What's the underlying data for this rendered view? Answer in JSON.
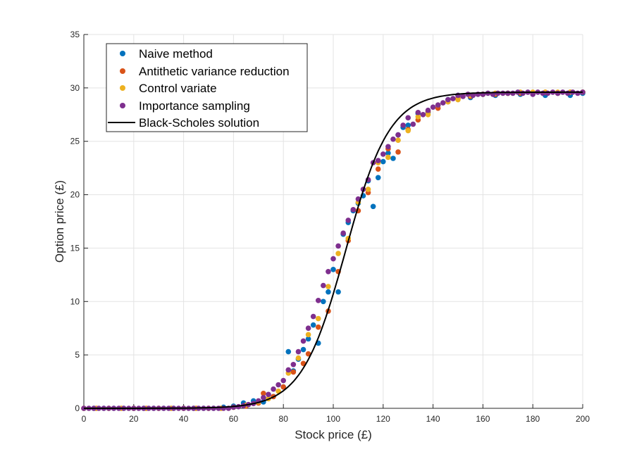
{
  "chart_data": {
    "type": "scatter",
    "title": "",
    "xlabel": "Stock price (£)",
    "ylabel": "Option price (£)",
    "xlim": [
      0,
      200
    ],
    "ylim": [
      0,
      35
    ],
    "xticks": [
      0,
      20,
      40,
      60,
      80,
      100,
      120,
      140,
      160,
      180,
      200
    ],
    "yticks": [
      0,
      5,
      10,
      15,
      20,
      25,
      30,
      35
    ],
    "grid": true,
    "legend_position": "top-left",
    "model": {
      "name": "Black-Scholes solution",
      "description_values": {
        "strike_center": 105,
        "sigma": 15,
        "cap": 29.6
      }
    },
    "series": [
      {
        "name": "Naive method",
        "kind": "scatter",
        "color": "#0072BD",
        "x": [
          0,
          4,
          8,
          12,
          16,
          20,
          24,
          28,
          32,
          36,
          40,
          44,
          48,
          52,
          56,
          60,
          64,
          68,
          72,
          76,
          80,
          82,
          84,
          86,
          88,
          90,
          92,
          94,
          96,
          98,
          100,
          102,
          104,
          106,
          108,
          110,
          112,
          114,
          116,
          118,
          120,
          122,
          124,
          126,
          128,
          130,
          134,
          138,
          142,
          146,
          150,
          155,
          160,
          165,
          170,
          175,
          180,
          185,
          190,
          195,
          200
        ],
        "y": [
          0,
          0,
          0,
          0,
          0,
          0,
          0,
          0,
          0,
          0,
          0,
          0,
          0,
          0,
          0.1,
          0.2,
          0.5,
          0.7,
          0.6,
          1.1,
          2.0,
          5.3,
          3.5,
          4.6,
          5.5,
          6.5,
          7.8,
          6.1,
          10.0,
          10.9,
          13.0,
          10.9,
          16.3,
          17.4,
          18.5,
          19.2,
          19.9,
          21.3,
          18.9,
          21.6,
          23.1,
          23.9,
          23.4,
          25.6,
          26.3,
          26.5,
          27.6,
          27.7,
          28.4,
          28.9,
          29.3,
          29.1,
          29.4,
          29.3,
          29.5,
          29.4,
          29.5,
          29.3,
          29.5,
          29.3,
          29.5
        ]
      },
      {
        "name": "Antithetic variance reduction",
        "kind": "scatter",
        "color": "#D95319",
        "x": [
          0,
          5,
          10,
          15,
          20,
          25,
          30,
          35,
          40,
          45,
          50,
          55,
          60,
          65,
          70,
          72,
          76,
          80,
          84,
          88,
          90,
          94,
          98,
          102,
          106,
          110,
          114,
          118,
          122,
          126,
          130,
          134,
          138,
          142,
          146,
          150,
          155,
          160,
          165,
          170,
          175,
          180,
          185,
          190,
          195,
          200
        ],
        "y": [
          0,
          0,
          0,
          0,
          0,
          0,
          0,
          0,
          0,
          0,
          0,
          0,
          0.1,
          0.2,
          0.5,
          1.4,
          1.1,
          2.0,
          3.4,
          4.2,
          5.1,
          7.6,
          9.1,
          12.8,
          15.7,
          18.5,
          20.2,
          22.4,
          24.3,
          24.0,
          26.1,
          27.0,
          27.8,
          28.1,
          28.7,
          29.0,
          29.2,
          29.4,
          29.4,
          29.5,
          29.5,
          29.5,
          29.6,
          29.5,
          29.6,
          29.6
        ]
      },
      {
        "name": "Control variate",
        "kind": "scatter",
        "color": "#EDB120",
        "x": [
          0,
          5,
          10,
          15,
          20,
          25,
          30,
          35,
          40,
          45,
          50,
          55,
          60,
          65,
          70,
          74,
          78,
          82,
          86,
          90,
          94,
          98,
          102,
          106,
          110,
          114,
          118,
          122,
          126,
          130,
          134,
          138,
          142,
          146,
          150,
          155,
          160,
          165,
          170,
          175,
          180,
          185,
          190,
          195,
          200
        ],
        "y": [
          0,
          0,
          0,
          0,
          0,
          0,
          0,
          0,
          0,
          0,
          0,
          0,
          0.1,
          0.3,
          0.6,
          0.9,
          1.6,
          3.3,
          4.7,
          6.9,
          8.4,
          11.4,
          14.5,
          15.9,
          19.3,
          20.5,
          23.0,
          23.5,
          25.1,
          26.0,
          27.3,
          27.5,
          28.4,
          28.7,
          28.9,
          29.3,
          29.4,
          29.5,
          29.5,
          29.6,
          29.6,
          29.6,
          29.6,
          29.6,
          29.6
        ]
      },
      {
        "name": "Importance sampling",
        "kind": "scatter",
        "color": "#7E2F8E",
        "x": [
          0,
          2,
          4,
          6,
          8,
          10,
          12,
          14,
          16,
          18,
          20,
          22,
          24,
          26,
          28,
          30,
          32,
          34,
          36,
          38,
          40,
          42,
          44,
          46,
          48,
          50,
          52,
          54,
          56,
          58,
          60,
          62,
          64,
          66,
          68,
          70,
          72,
          74,
          76,
          78,
          80,
          82,
          84,
          86,
          88,
          90,
          92,
          94,
          96,
          98,
          100,
          102,
          104,
          106,
          108,
          110,
          112,
          114,
          116,
          118,
          120,
          122,
          124,
          126,
          128,
          130,
          132,
          134,
          136,
          138,
          140,
          142,
          144,
          146,
          148,
          150,
          152,
          154,
          156,
          158,
          160,
          162,
          164,
          166,
          168,
          170,
          172,
          174,
          176,
          178,
          180,
          182,
          184,
          186,
          188,
          190,
          192,
          194,
          196,
          198,
          200
        ],
        "y": [
          0,
          0,
          0,
          0,
          0,
          0,
          0,
          0,
          0,
          0,
          0,
          0,
          0,
          0,
          0,
          0,
          0,
          0,
          0,
          0,
          0,
          0,
          0,
          0,
          0,
          0,
          0,
          0,
          0,
          0,
          0.1,
          0.15,
          0.25,
          0.35,
          0.45,
          0.7,
          1.0,
          1.3,
          1.8,
          2.2,
          2.6,
          3.6,
          4.1,
          5.3,
          6.3,
          7.5,
          8.6,
          10.1,
          11.5,
          12.8,
          14.0,
          15.2,
          16.4,
          17.6,
          18.6,
          19.6,
          20.5,
          21.4,
          23.0,
          23.2,
          23.8,
          24.5,
          25.2,
          25.6,
          26.5,
          27.2,
          26.6,
          27.7,
          27.5,
          27.9,
          28.2,
          28.4,
          28.6,
          28.9,
          29.0,
          29.3,
          29.2,
          29.4,
          29.3,
          29.4,
          29.4,
          29.5,
          29.4,
          29.5,
          29.5,
          29.5,
          29.5,
          29.6,
          29.5,
          29.6,
          29.4,
          29.6,
          29.5,
          29.5,
          29.6,
          29.5,
          29.6,
          29.5,
          29.6,
          29.5,
          29.6
        ]
      },
      {
        "name": "Black-Scholes solution",
        "kind": "line",
        "color": "#000000"
      }
    ]
  },
  "legend": {
    "items": [
      {
        "label": "Naive method",
        "color": "#0072BD",
        "marker": "dot"
      },
      {
        "label": "Antithetic variance reduction",
        "color": "#D95319",
        "marker": "dot"
      },
      {
        "label": "Control variate",
        "color": "#EDB120",
        "marker": "dot"
      },
      {
        "label": "Importance sampling",
        "color": "#7E2F8E",
        "marker": "dot"
      },
      {
        "label": "Black-Scholes solution",
        "color": "#000000",
        "marker": "line"
      }
    ]
  }
}
